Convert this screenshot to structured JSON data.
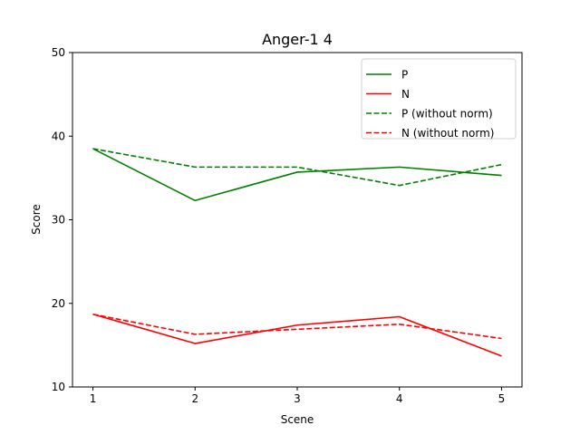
{
  "chart_data": {
    "type": "line",
    "title": "Anger-1 4",
    "xlabel": "Scene",
    "ylabel": "Score",
    "x": [
      1,
      2,
      3,
      4,
      5
    ],
    "xticks": [
      "1",
      "2",
      "3",
      "4",
      "5"
    ],
    "yticks": [
      "10",
      "20",
      "30",
      "40",
      "50"
    ],
    "xlim": [
      0.8,
      5.2
    ],
    "ylim": [
      10,
      50
    ],
    "grid": false,
    "legend_position": "top-right",
    "series": [
      {
        "name": "P",
        "values": [
          38.5,
          32.3,
          35.7,
          36.3,
          35.3
        ],
        "color": "#008000",
        "style": "solid"
      },
      {
        "name": "N",
        "values": [
          18.7,
          15.2,
          17.4,
          18.4,
          13.7
        ],
        "color": "#ff0000",
        "style": "solid"
      },
      {
        "name": "P (without norm)",
        "values": [
          38.5,
          36.3,
          36.3,
          34.1,
          36.6
        ],
        "color": "#008000",
        "style": "dashed"
      },
      {
        "name": "N (without norm)",
        "values": [
          18.7,
          16.3,
          16.9,
          17.5,
          15.8
        ],
        "color": "#ff0000",
        "style": "dashed"
      }
    ]
  }
}
